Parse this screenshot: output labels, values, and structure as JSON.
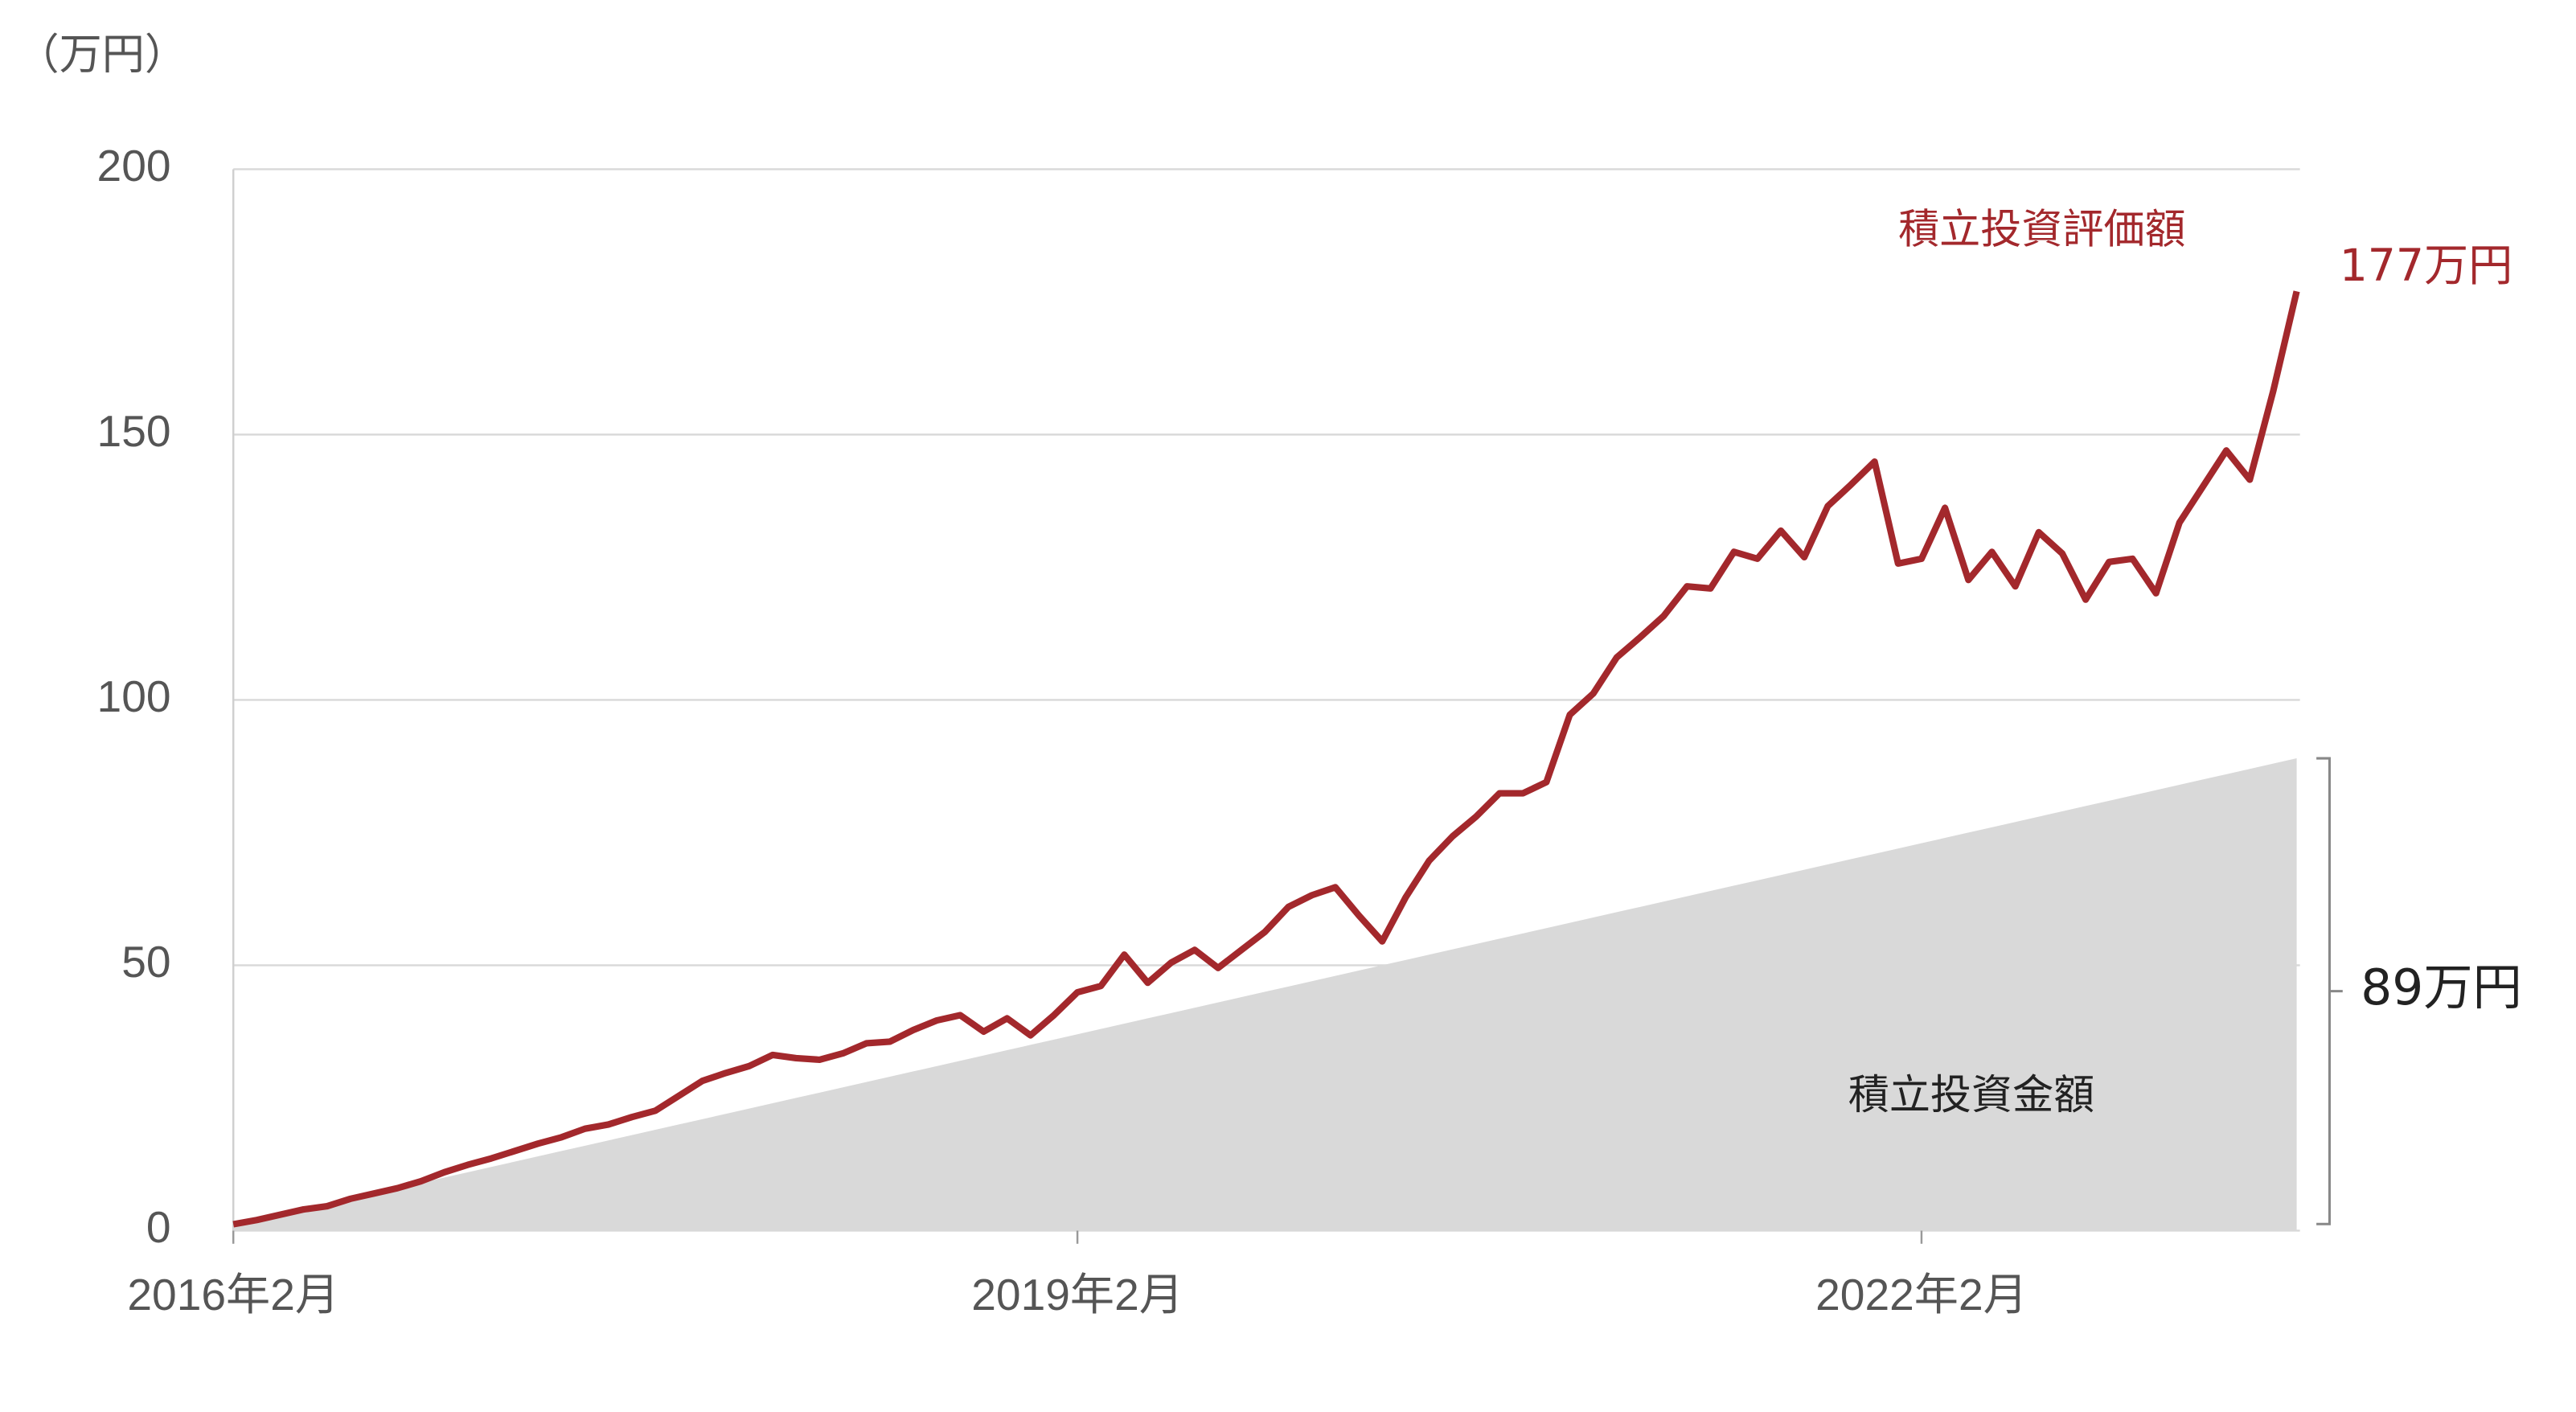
{
  "chart_data": {
    "type": "line",
    "y_label": "（万円）",
    "categories": [
      "2016年2月",
      null,
      null,
      null,
      null,
      null,
      null,
      null,
      null,
      null,
      null,
      null,
      null,
      null,
      null,
      null,
      null,
      null,
      null,
      null,
      null,
      null,
      null,
      null,
      null,
      null,
      null,
      null,
      null,
      null,
      null,
      null,
      null,
      null,
      null,
      null,
      "2019年2月",
      null,
      null,
      null,
      null,
      null,
      null,
      null,
      null,
      null,
      null,
      null,
      null,
      null,
      null,
      null,
      null,
      null,
      null,
      null,
      null,
      null,
      null,
      null,
      null,
      null,
      null,
      null,
      null,
      null,
      null,
      null,
      null,
      null,
      null,
      null,
      "2022年2月",
      null,
      null,
      null,
      null,
      null,
      null,
      null,
      null,
      null,
      null,
      null,
      null,
      null,
      null,
      null,
      null
    ],
    "series": [
      {
        "name": "積立投資評価額",
        "type": "line",
        "color": "#a3282c",
        "values": [
          1.2,
          2,
          3,
          4,
          4.6,
          6,
          7,
          8,
          9.3,
          11,
          12.4,
          13.6,
          15,
          16.4,
          17.6,
          19.2,
          20,
          21.4,
          22.6,
          25.4,
          28.2,
          29.7,
          31,
          33.1,
          32.5,
          32.2,
          33.4,
          35.3,
          35.6,
          37.8,
          39.6,
          40.6,
          37.5,
          40,
          36.8,
          40.6,
          44.9,
          46.1,
          52,
          46.7,
          50.5,
          52.9,
          49.5,
          52.9,
          56.3,
          61,
          63.2,
          64.7,
          59.4,
          54.5,
          62.8,
          69.7,
          74.3,
          78,
          82.4,
          82.4,
          84.5,
          97.2,
          101.2,
          108,
          111.8,
          115.8,
          121.4,
          121,
          127.9,
          126.6,
          131.9,
          126.9,
          136.5,
          140.6,
          144.9,
          125.7,
          126.6,
          136.2,
          122.6,
          127.9,
          121.4,
          131.6,
          127.6,
          118.9,
          126,
          126.6,
          120.1,
          133.4,
          140.2,
          147,
          141.5,
          158.2,
          177
        ],
        "value_labels": [
          null,
          null,
          null,
          null,
          null,
          null,
          null,
          null,
          null,
          null,
          null,
          null,
          null,
          null,
          null,
          null,
          null,
          null,
          null,
          null,
          null,
          null,
          null,
          null,
          null,
          null,
          null,
          null,
          null,
          null,
          null,
          null,
          null,
          null,
          null,
          null,
          null,
          null,
          null,
          null,
          null,
          null,
          null,
          null,
          null,
          null,
          null,
          null,
          null,
          null,
          null,
          null,
          null,
          null,
          null,
          null,
          null,
          null,
          null,
          null,
          null,
          null,
          null,
          null,
          null,
          null,
          null,
          null,
          null,
          null,
          null,
          null,
          null,
          null,
          null,
          null,
          null,
          null,
          null,
          null,
          null,
          null,
          null,
          null,
          null,
          null,
          null,
          null,
          "177万円"
        ]
      },
      {
        "name": "積立投資金額",
        "type": "area",
        "color": "#d9d9d9",
        "values": [
          1,
          2,
          3,
          4,
          5,
          6,
          7,
          8,
          9,
          10,
          11,
          12,
          13,
          14,
          15,
          16,
          17,
          18,
          19,
          20,
          21,
          22,
          23,
          24,
          25,
          26,
          27,
          28,
          29,
          30,
          31,
          32,
          33,
          34,
          35,
          36,
          37,
          38,
          39,
          40,
          41,
          42,
          43,
          44,
          45,
          46,
          47,
          48,
          49,
          50,
          51,
          52,
          53,
          54,
          55,
          56,
          57,
          58,
          59,
          60,
          61,
          62,
          63,
          64,
          65,
          66,
          67,
          68,
          69,
          70,
          71,
          72,
          73,
          74,
          75,
          76,
          77,
          78,
          79,
          80,
          81,
          82,
          83,
          84,
          85,
          86,
          87,
          88,
          89
        ],
        "value_labels": [
          null,
          null,
          null,
          null,
          null,
          null,
          null,
          null,
          null,
          null,
          null,
          null,
          null,
          null,
          null,
          null,
          null,
          null,
          null,
          null,
          null,
          null,
          null,
          null,
          null,
          null,
          null,
          null,
          null,
          null,
          null,
          null,
          null,
          null,
          null,
          null,
          null,
          null,
          null,
          null,
          null,
          null,
          null,
          null,
          null,
          null,
          null,
          null,
          null,
          null,
          null,
          null,
          null,
          null,
          null,
          null,
          null,
          null,
          null,
          null,
          null,
          null,
          null,
          null,
          null,
          null,
          null,
          null,
          null,
          null,
          null,
          null,
          null,
          null,
          null,
          null,
          null,
          null,
          null,
          null,
          null,
          null,
          null,
          null,
          null,
          null,
          null,
          null,
          "89万円"
        ]
      }
    ],
    "ylim": [
      0,
      200
    ],
    "yticks": [
      0,
      50,
      100,
      150,
      200
    ],
    "grid": true
  }
}
